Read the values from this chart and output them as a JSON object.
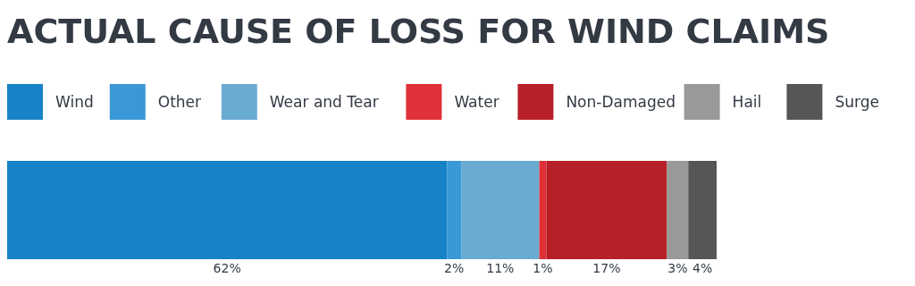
{
  "chart_data": {
    "type": "bar",
    "title": "ACTUAL CAUSE OF LOSS FOR WIND CLAIMS",
    "orientation": "horizontal",
    "stacked": true,
    "legend": "top",
    "categories": [
      null
    ],
    "series": [
      {
        "name": "Wind",
        "color": "#1782c8",
        "values": [
          62
        ],
        "value_labels": [
          "62%"
        ]
      },
      {
        "name": "Other",
        "color": "#3a98d6",
        "values": [
          2
        ],
        "value_labels": [
          "2%"
        ]
      },
      {
        "name": "Wear and Tear",
        "color": "#6aabd2",
        "values": [
          11
        ],
        "value_labels": [
          "11%"
        ]
      },
      {
        "name": "Water",
        "color": "#e03038",
        "values": [
          1
        ],
        "value_labels": [
          "1%"
        ]
      },
      {
        "name": "Non-Damaged",
        "color": "#b72027",
        "values": [
          17
        ],
        "value_labels": [
          "17%"
        ]
      },
      {
        "name": "Hail",
        "color": "#999999",
        "values": [
          3
        ],
        "value_labels": [
          "3%"
        ]
      },
      {
        "name": "Surge",
        "color": "#555757",
        "values": [
          4
        ],
        "value_labels": [
          "4%"
        ]
      }
    ]
  }
}
